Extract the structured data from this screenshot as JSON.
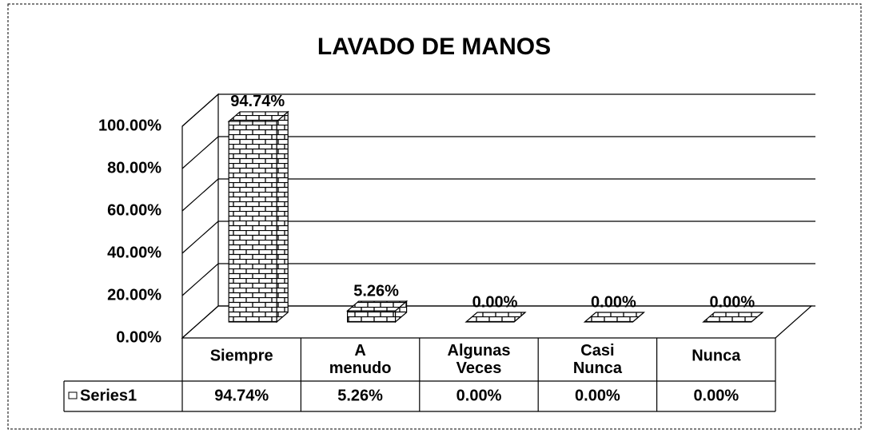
{
  "chart_data": {
    "type": "bar3d",
    "title": "LAVADO DE MANOS",
    "categories": [
      "Siempre",
      "A menudo",
      "Algunas Veces",
      "Casi Nunca",
      "Nunca"
    ],
    "series": [
      {
        "name": "Series1",
        "color": "#ffffff",
        "values": [
          94.74,
          5.26,
          0,
          0,
          0
        ],
        "value_labels": [
          "94.74%",
          "5.26%",
          "0.00%",
          "0.00%",
          "0.00%"
        ]
      }
    ],
    "ylim": [
      0,
      100
    ],
    "yticks": [
      {
        "value": 0,
        "label": "0.00%"
      },
      {
        "value": 20,
        "label": "20.00%"
      },
      {
        "value": 40,
        "label": "40.00%"
      },
      {
        "value": 60,
        "label": "60.00%"
      },
      {
        "value": 80,
        "label": "80.00%"
      },
      {
        "value": 100,
        "label": "100.00%"
      }
    ],
    "grid": true,
    "data_table": true
  }
}
